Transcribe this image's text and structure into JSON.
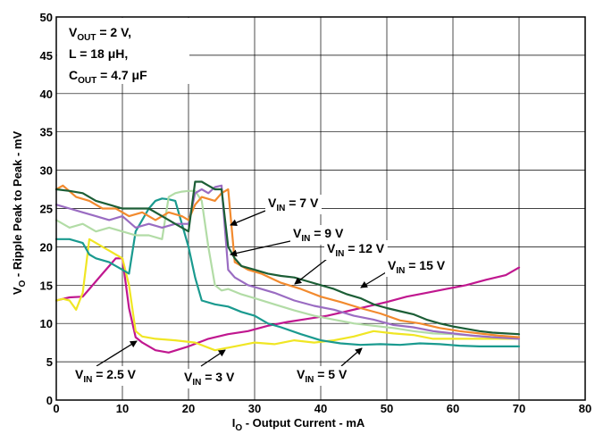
{
  "chart_data": {
    "type": "line",
    "title": "",
    "xlabel": {
      "main": "I",
      "sub": "O",
      "rest": " - Output Current - mA"
    },
    "ylabel": {
      "main": "V",
      "sub": "O",
      "rest": " - Ripple Peak to Peak - mV"
    },
    "xlim": [
      0,
      80
    ],
    "ylim": [
      0,
      50
    ],
    "xticks": [
      "0",
      "10",
      "20",
      "30",
      "40",
      "50",
      "60",
      "70",
      "80"
    ],
    "yticks": [
      "0",
      "5",
      "10",
      "15",
      "20",
      "25",
      "30",
      "35",
      "40",
      "45",
      "50"
    ],
    "grid": true,
    "conditions": [
      {
        "main": "V",
        "sub": "OUT",
        "rest": " = 2 V,"
      },
      {
        "main": "L = 18 μH,",
        "sub": "",
        "rest": ""
      },
      {
        "main": "C",
        "sub": "OUT",
        "rest": " = 4.7 μF"
      }
    ],
    "series": [
      {
        "name": "2.5 V",
        "color": "#c0178f",
        "x": [
          0,
          2,
          4,
          5,
          6,
          7,
          8,
          9,
          10,
          11,
          12,
          13,
          15,
          17,
          20,
          23,
          26,
          29,
          32,
          35,
          38,
          41,
          44,
          47,
          50,
          53,
          56,
          59,
          62,
          65,
          68,
          70
        ],
        "y": [
          13,
          13.4,
          13.5,
          14.5,
          15.5,
          16.5,
          17.5,
          18.5,
          18.5,
          12,
          8.2,
          7.5,
          6.5,
          6.2,
          7,
          8,
          8.6,
          9,
          9.7,
          10.2,
          10.6,
          11,
          11.6,
          12.2,
          12.8,
          13.5,
          14,
          14.5,
          15,
          15.7,
          16.3,
          17.3
        ]
      },
      {
        "name": "3 V",
        "color": "#f0e624",
        "x": [
          0,
          1,
          2,
          3,
          4,
          5,
          6,
          7,
          8,
          9,
          10,
          11,
          12,
          13,
          15,
          18,
          21,
          24,
          27,
          30,
          33,
          36,
          39,
          42,
          45,
          48,
          51,
          54,
          57,
          60,
          63,
          66,
          70
        ],
        "y": [
          13,
          13.2,
          13,
          11.8,
          14,
          21,
          20.5,
          20,
          19.5,
          19,
          18.5,
          15,
          9,
          8.3,
          8,
          7.8,
          7.5,
          6.5,
          7,
          7.5,
          7.3,
          7.8,
          7.5,
          7.8,
          8.3,
          9,
          8.7,
          8.5,
          8,
          8,
          8,
          8,
          8
        ]
      },
      {
        "name": "5 V",
        "color": "#1a9a8f",
        "x": [
          0,
          2,
          4,
          5,
          6,
          8,
          10,
          11,
          12,
          14,
          15,
          16,
          17,
          18,
          19,
          20,
          21,
          22,
          24,
          26,
          28,
          30,
          32,
          34,
          37,
          40,
          43,
          46,
          49,
          52,
          55,
          58,
          61,
          64,
          67,
          70
        ],
        "y": [
          21,
          21,
          20.5,
          19,
          18.5,
          18,
          17,
          16.5,
          22,
          25,
          26,
          26.3,
          26.2,
          26,
          23,
          20,
          16,
          13,
          12.5,
          12.2,
          11.5,
          11,
          10,
          9.5,
          8.6,
          7.8,
          7.4,
          7.2,
          7.3,
          7.2,
          7.4,
          7.3,
          7.1,
          7,
          7,
          7
        ]
      },
      {
        "name": "15 V",
        "color": "#b2dca6",
        "x": [
          0,
          2,
          4,
          6,
          8,
          10,
          12,
          14,
          16,
          17,
          18,
          19,
          20,
          21,
          22,
          23,
          24,
          25,
          26,
          28,
          30,
          33,
          36,
          39,
          42,
          45,
          48,
          51,
          54,
          57,
          60,
          63,
          66,
          70
        ],
        "y": [
          23.5,
          22.5,
          23,
          22,
          22.5,
          22,
          21.5,
          21.5,
          21,
          26.5,
          27,
          27.2,
          27.3,
          27.3,
          26,
          20,
          15,
          14.3,
          14.5,
          13.8,
          13.3,
          12.5,
          11.7,
          11,
          10.5,
          10,
          9.7,
          9.4,
          9,
          8.7,
          8.6,
          8.4,
          8.2,
          8
        ]
      },
      {
        "name": "12 V",
        "color": "#9a6cc2",
        "x": [
          0,
          2,
          4,
          6,
          8,
          10,
          12,
          14,
          16,
          18,
          20,
          21,
          22,
          23,
          24,
          25,
          26,
          27,
          29,
          31,
          33,
          36,
          39,
          42,
          45,
          48,
          51,
          54,
          57,
          60,
          63,
          66,
          70
        ],
        "y": [
          25.5,
          25,
          24.5,
          24,
          23.5,
          24,
          22.5,
          23,
          22.5,
          23,
          23,
          27,
          27.5,
          27,
          27.8,
          28,
          17,
          16,
          15,
          14.5,
          14,
          13,
          12.3,
          11.8,
          11,
          10.5,
          9.8,
          9.5,
          9,
          8.7,
          8.4,
          8.2,
          8
        ]
      },
      {
        "name": "9 V",
        "color": "#f28a2e",
        "x": [
          0,
          1,
          3,
          5,
          7,
          9,
          11,
          13,
          15,
          17,
          19,
          20,
          21,
          22,
          24,
          25,
          26,
          27,
          29,
          31,
          34,
          37,
          40,
          43,
          46,
          49,
          52,
          55,
          58,
          61,
          64,
          67,
          70
        ],
        "y": [
          27.5,
          28,
          26.5,
          26,
          25,
          25,
          24,
          24.5,
          23.5,
          24.5,
          24,
          23.5,
          25.5,
          26.5,
          26,
          27,
          27.5,
          18,
          17,
          16.5,
          15.3,
          14.5,
          13.5,
          12.8,
          12,
          11.3,
          10.4,
          10,
          9.4,
          9,
          8.7,
          8.4,
          8.2
        ]
      },
      {
        "name": "7 V",
        "color": "#1c5e36",
        "x": [
          0,
          2,
          4,
          6,
          8,
          10,
          12,
          14,
          16,
          18,
          20,
          21,
          22,
          23,
          24,
          25,
          26,
          27,
          28,
          30,
          32,
          34,
          36,
          38,
          40,
          42,
          44,
          46,
          48,
          50,
          52,
          54,
          56,
          58,
          60,
          62,
          64,
          66,
          68,
          70
        ],
        "y": [
          27.5,
          27.3,
          27,
          26,
          25.5,
          25,
          25,
          25,
          24,
          23,
          22,
          28.5,
          28.5,
          28,
          27.5,
          27.5,
          20,
          18.5,
          17.5,
          17,
          16.5,
          16.2,
          16,
          15.5,
          15,
          14.5,
          13.8,
          13.3,
          12.5,
          12,
          11.6,
          11.2,
          10.5,
          10,
          9.6,
          9.3,
          9,
          8.8,
          8.7,
          8.6
        ]
      }
    ],
    "annotations": [
      {
        "name": "7 V",
        "label": {
          "main": "V",
          "sub": "IN",
          "rest": " = 7 V"
        }
      },
      {
        "name": "9 V",
        "label": {
          "main": "V",
          "sub": "IN",
          "rest": " = 9 V"
        }
      },
      {
        "name": "12 V",
        "label": {
          "main": "V",
          "sub": "IN",
          "rest": " = 12 V"
        }
      },
      {
        "name": "15 V",
        "label": {
          "main": "V",
          "sub": "IN",
          "rest": " = 15 V"
        }
      },
      {
        "name": "2.5 V",
        "label": {
          "main": "V",
          "sub": "IN",
          "rest": " = 2.5 V"
        }
      },
      {
        "name": "3 V",
        "label": {
          "main": "V",
          "sub": "IN",
          "rest": " = 3 V"
        }
      },
      {
        "name": "5 V",
        "label": {
          "main": "V",
          "sub": "IN",
          "rest": " = 5 V"
        }
      }
    ]
  }
}
